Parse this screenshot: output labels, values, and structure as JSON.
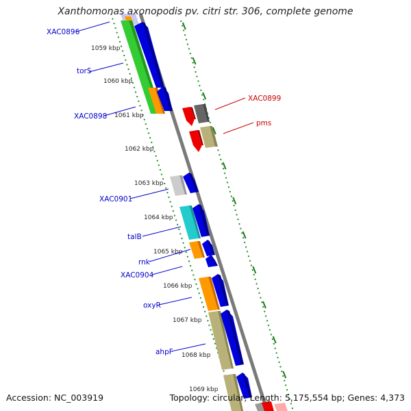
{
  "title": "Xanthomonas axonopodis pv. citri str. 306, complete genome",
  "accession_text": "Accession: NC_003919",
  "summary_text": "Topology: circular; Length: 5,175,554 bp; Genes: 4,373",
  "colors": {
    "label_left": "#0000cc",
    "label_right": "#cc0000",
    "backbone": "#7a7a7a",
    "dotted_track": "#1f8a1f",
    "tick_dash": "#1a7a1a"
  },
  "tick_labels": [
    "1059 kbp",
    "1060 kbp",
    "1061 kbp",
    "1062 kbp",
    "1063 kbp",
    "1064 kbp",
    "1065 kbp",
    "1066 kbp",
    "1067 kbp",
    "1068 kbp",
    "1069 kbp"
  ],
  "left_gene_labels": [
    "XAC0896",
    "torS",
    "XAC0898",
    "XAC0901",
    "talB",
    "rnk",
    "XAC0904",
    "oxyR",
    "ahpF"
  ],
  "right_gene_labels": [
    "XAC0899",
    "pms"
  ]
}
